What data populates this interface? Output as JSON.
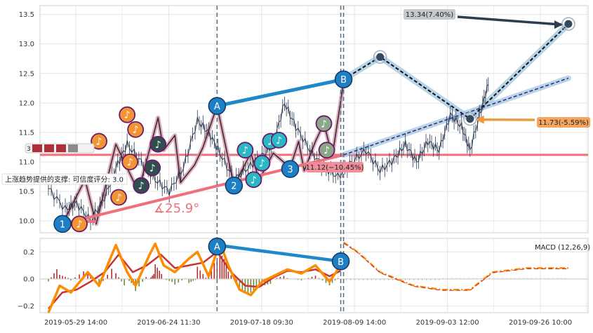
{
  "chart_data": {
    "type": "line",
    "x_ticks": [
      "2019-05-29 14:00",
      "2019-06-24 11:30",
      "2019-07-18 09:30",
      "2019-08-09 14:00",
      "2019-09-03 12:00",
      "2019-09-26 10:00"
    ],
    "price_panel": {
      "ylim": [
        9.8,
        13.65
      ],
      "y_ticks": [
        "10.0",
        "10.5",
        "11.0",
        "11.5",
        "12.0",
        "12.5",
        "13.0",
        "13.5"
      ],
      "price_path": [
        {
          "x": 0,
          "y": 10.55
        },
        {
          "x": 6,
          "y": 10.2
        },
        {
          "x": 10,
          "y": 10.3
        },
        {
          "x": 15,
          "y": 10.0
        },
        {
          "x": 20,
          "y": 10.4
        },
        {
          "x": 24,
          "y": 10.9
        },
        {
          "x": 28,
          "y": 11.3
        },
        {
          "x": 33,
          "y": 11.0
        },
        {
          "x": 38,
          "y": 10.7
        },
        {
          "x": 43,
          "y": 10.5
        },
        {
          "x": 48,
          "y": 10.9
        },
        {
          "x": 53,
          "y": 11.7
        },
        {
          "x": 57,
          "y": 11.5
        },
        {
          "x": 61,
          "y": 11.15
        },
        {
          "x": 66,
          "y": 10.7
        },
        {
          "x": 71,
          "y": 10.9
        },
        {
          "x": 76,
          "y": 11.1
        },
        {
          "x": 80,
          "y": 11.3
        },
        {
          "x": 84,
          "y": 12.0
        },
        {
          "x": 88,
          "y": 11.6
        },
        {
          "x": 93,
          "y": 11.2
        },
        {
          "x": 98,
          "y": 10.9
        },
        {
          "x": 103,
          "y": 10.75
        },
        {
          "x": 108,
          "y": 11.0
        },
        {
          "x": 113,
          "y": 11.2
        },
        {
          "x": 118,
          "y": 10.85
        },
        {
          "x": 123,
          "y": 11.05
        },
        {
          "x": 127,
          "y": 11.3
        },
        {
          "x": 131,
          "y": 11.0
        },
        {
          "x": 135,
          "y": 11.35
        },
        {
          "x": 139,
          "y": 11.2
        },
        {
          "x": 143,
          "y": 11.8
        },
        {
          "x": 147,
          "y": 11.6
        },
        {
          "x": 150,
          "y": 11.2
        },
        {
          "x": 154,
          "y": 11.9
        },
        {
          "x": 157,
          "y": 12.4
        }
      ],
      "zigzag": [
        {
          "x": 5,
          "y": 9.95
        },
        {
          "x": 13,
          "y": 10.7
        },
        {
          "x": 17,
          "y": 9.95
        },
        {
          "x": 24,
          "y": 11.3
        },
        {
          "x": 32,
          "y": 10.5
        },
        {
          "x": 39,
          "y": 11.75
        },
        {
          "x": 41,
          "y": 11.2
        },
        {
          "x": 45,
          "y": 11.45
        },
        {
          "x": 47,
          "y": 10.65
        },
        {
          "x": 52,
          "y": 10.95
        },
        {
          "x": 55,
          "y": 11.25
        },
        {
          "x": 60,
          "y": 11.95
        },
        {
          "x": 66,
          "y": 10.6
        },
        {
          "x": 72,
          "y": 11.15
        },
        {
          "x": 75,
          "y": 10.7
        },
        {
          "x": 80,
          "y": 11.15
        },
        {
          "x": 86,
          "y": 10.9
        },
        {
          "x": 89,
          "y": 11.35
        },
        {
          "x": 91,
          "y": 10.85
        },
        {
          "x": 95,
          "y": 11.35
        },
        {
          "x": 98,
          "y": 11.65
        },
        {
          "x": 101,
          "y": 11.1
        },
        {
          "x": 105,
          "y": 12.35
        }
      ],
      "support_line": {
        "from": {
          "x": 5,
          "y": 9.95
        },
        "to": {
          "x": 105,
          "y": 11.12
        }
      },
      "horizontal_line": {
        "y": 11.12
      },
      "forecast_path": [
        {
          "x": 105,
          "y": 12.4
        },
        {
          "x": 118,
          "y": 12.78
        },
        {
          "x": 150,
          "y": 11.73
        },
        {
          "x": 185,
          "y": 13.34
        }
      ],
      "forecast_upper": {
        "from": {
          "x": 105,
          "y": 11.12
        },
        "to": {
          "x": 185,
          "y": 12.42
        }
      },
      "pattern_line_A_B": {
        "from": {
          "x": 60,
          "y": 11.95
        },
        "to": {
          "x": 105,
          "y": 12.4
        }
      },
      "marked_points": [
        {
          "label": "1",
          "x": 5,
          "y": 9.95,
          "color": "#1f7fc4"
        },
        {
          "label": "2",
          "x": 66,
          "y": 10.6,
          "color": "#1f7fc4"
        },
        {
          "label": "3",
          "x": 86,
          "y": 10.88,
          "color": "#1f7fc4"
        },
        {
          "label": "A",
          "x": 60,
          "y": 11.95,
          "color": "#1f7fc4"
        },
        {
          "label": "B",
          "x": 105,
          "y": 12.4,
          "color": "#1f7fc4"
        }
      ],
      "note_markers": [
        {
          "x": 11,
          "y": 9.95,
          "color": "#f29433"
        },
        {
          "x": 18,
          "y": 11.35,
          "color": "#f29433"
        },
        {
          "x": 25,
          "y": 10.4,
          "color": "#f29433"
        },
        {
          "x": 28,
          "y": 11.8,
          "color": "#f29433"
        },
        {
          "x": 31,
          "y": 11.55,
          "color": "#f29433"
        },
        {
          "x": 29,
          "y": 11.0,
          "color": "#f29433"
        },
        {
          "x": 33,
          "y": 10.6,
          "color": "#2f4f4f"
        },
        {
          "x": 37,
          "y": 10.9,
          "color": "#2f4f4f"
        },
        {
          "x": 39,
          "y": 11.3,
          "color": "#2f4f4f"
        },
        {
          "x": 70,
          "y": 11.2,
          "color": "#29b8c4"
        },
        {
          "x": 73,
          "y": 10.7,
          "color": "#29b8c4"
        },
        {
          "x": 76,
          "y": 10.98,
          "color": "#29b8c4"
        },
        {
          "x": 79,
          "y": 11.35,
          "color": "#29b8c4"
        },
        {
          "x": 82,
          "y": 11.37,
          "color": "#29b8c4"
        },
        {
          "x": 98,
          "y": 11.65,
          "color": "#8aa78a"
        },
        {
          "x": 99,
          "y": 11.2,
          "color": "#8aa78a"
        }
      ],
      "angle_label": "∡25.9°",
      "support_text": "上涨趋势提供的支撑: 可信度评分: 3.0",
      "target_high": {
        "label": "13.34(7.40%)",
        "price": 13.34
      },
      "target_mid": {
        "label": "11.73(-5.59%)",
        "price": 11.73
      },
      "target_low": {
        "label": "11.12(−10.45%)",
        "price": 11.12
      },
      "left_badge": "3"
    },
    "macd_panel": {
      "title": "MACD (12,26,9)",
      "ylim": [
        -0.25,
        0.3
      ],
      "y_ticks": [
        "0.2",
        "0.0",
        "−0.2"
      ],
      "macd_line": [
        {
          "x": 0,
          "y": -0.25
        },
        {
          "x": 4,
          "y": -0.05
        },
        {
          "x": 8,
          "y": -0.1
        },
        {
          "x": 14,
          "y": 0.05
        },
        {
          "x": 18,
          "y": -0.05
        },
        {
          "x": 24,
          "y": 0.25
        },
        {
          "x": 28,
          "y": 0.05
        },
        {
          "x": 31,
          "y": -0.05
        },
        {
          "x": 36,
          "y": 0.18
        },
        {
          "x": 38,
          "y": 0.26
        },
        {
          "x": 41,
          "y": 0.1
        },
        {
          "x": 45,
          "y": 0.05
        },
        {
          "x": 50,
          "y": 0.15
        },
        {
          "x": 53,
          "y": 0.2
        },
        {
          "x": 57,
          "y": 0.02
        },
        {
          "x": 61,
          "y": 0.27
        },
        {
          "x": 64,
          "y": 0.1
        },
        {
          "x": 68,
          "y": -0.08
        },
        {
          "x": 72,
          "y": -0.12
        },
        {
          "x": 76,
          "y": -0.02
        },
        {
          "x": 80,
          "y": 0.02
        },
        {
          "x": 85,
          "y": 0.07
        },
        {
          "x": 90,
          "y": 0.04
        },
        {
          "x": 95,
          "y": 0.1
        },
        {
          "x": 100,
          "y": -0.02
        },
        {
          "x": 104,
          "y": 0.1
        }
      ],
      "signal_line": [
        {
          "x": 0,
          "y": -0.22
        },
        {
          "x": 5,
          "y": -0.1
        },
        {
          "x": 10,
          "y": -0.08
        },
        {
          "x": 15,
          "y": -0.02
        },
        {
          "x": 20,
          "y": 0.05
        },
        {
          "x": 25,
          "y": 0.18
        },
        {
          "x": 30,
          "y": 0.05
        },
        {
          "x": 35,
          "y": 0.1
        },
        {
          "x": 40,
          "y": 0.18
        },
        {
          "x": 45,
          "y": 0.08
        },
        {
          "x": 50,
          "y": 0.1
        },
        {
          "x": 55,
          "y": 0.12
        },
        {
          "x": 60,
          "y": 0.2
        },
        {
          "x": 65,
          "y": 0.05
        },
        {
          "x": 70,
          "y": -0.05
        },
        {
          "x": 75,
          "y": -0.06
        },
        {
          "x": 80,
          "y": 0.01
        },
        {
          "x": 85,
          "y": 0.06
        },
        {
          "x": 90,
          "y": 0.05
        },
        {
          "x": 95,
          "y": 0.07
        },
        {
          "x": 100,
          "y": 0.02
        },
        {
          "x": 104,
          "y": 0.06
        }
      ],
      "forecast_macd": [
        {
          "x": 105,
          "y": 0.27
        },
        {
          "x": 110,
          "y": 0.2
        },
        {
          "x": 118,
          "y": 0.05
        },
        {
          "x": 130,
          "y": -0.05
        },
        {
          "x": 140,
          "y": -0.08
        },
        {
          "x": 150,
          "y": -0.08
        },
        {
          "x": 158,
          "y": 0.05
        },
        {
          "x": 170,
          "y": 0.08
        },
        {
          "x": 185,
          "y": 0.08
        }
      ],
      "pattern_line_A_B": {
        "from": {
          "x": 60,
          "y": 0.25
        },
        "to": {
          "x": 104,
          "y": 0.13
        }
      },
      "marked_points": [
        {
          "label": "A",
          "x": 60,
          "y": 0.24,
          "color": "#1f7fc4"
        },
        {
          "label": "B",
          "x": 104,
          "y": 0.13,
          "color": "#1f7fc4"
        }
      ]
    },
    "vlines": [
      {
        "x": 60,
        "color": "#5f7386"
      },
      {
        "x": 104,
        "color": "#5f7386"
      },
      {
        "x": 105,
        "color": "#5f7386"
      }
    ],
    "x_domain": [
      -3,
      192
    ],
    "grid": true,
    "colors": {
      "price_line": "#2b3950",
      "support": "#ef6f7c",
      "zigzag_shadow": "#d89aab",
      "pattern": "#1f88c9",
      "forecast_shadow": "#a9cbe4",
      "forecast_dash": "#111111",
      "forecast_upper": "#3a2e7a",
      "macd": "#ff8c00",
      "signal": "#c83232",
      "hist_pos": "#b03030",
      "hist_neg": "#6e8a3a",
      "target_mid_bg": "#f5a055"
    }
  }
}
